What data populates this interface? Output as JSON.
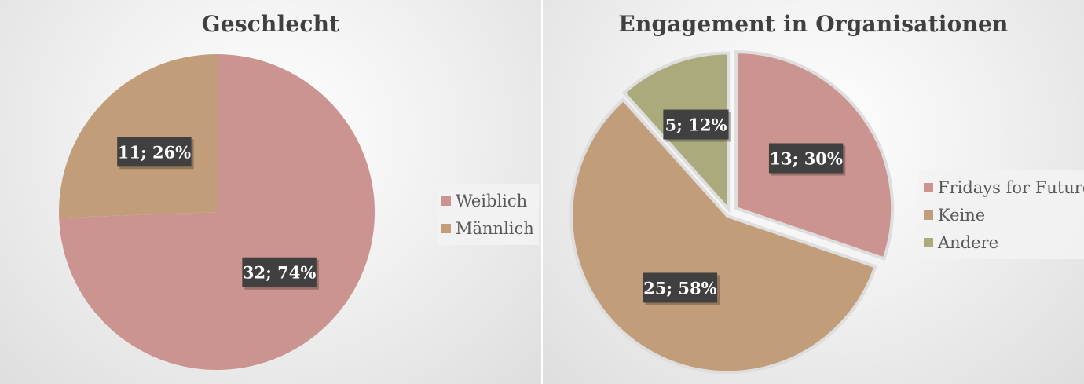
{
  "chart_data": [
    {
      "type": "pie",
      "title": "Geschlecht",
      "slices": [
        {
          "label": "Weiblich",
          "value": 32,
          "percent": "74%",
          "data_label": "32; 74%",
          "color": "#cc9490"
        },
        {
          "label": "Männlich",
          "value": 11,
          "percent": "26%",
          "data_label": "11; 26%",
          "color": "#c19e79"
        }
      ],
      "legend_placement": "right"
    },
    {
      "type": "pie",
      "title": "Engagement in Organisationen",
      "slices": [
        {
          "label": "Fridays for Future",
          "value": 13,
          "percent": "30%",
          "data_label": "13; 30%",
          "color": "#cc9490",
          "exploded": true
        },
        {
          "label": "Keine",
          "value": 25,
          "percent": "58%",
          "data_label": "25; 58%",
          "color": "#c19e79",
          "exploded": false
        },
        {
          "label": "Andere",
          "value": 5,
          "percent": "12%",
          "data_label": "5; 12%",
          "color": "#abaa7c",
          "exploded": false
        }
      ],
      "legend_placement": "right"
    }
  ]
}
